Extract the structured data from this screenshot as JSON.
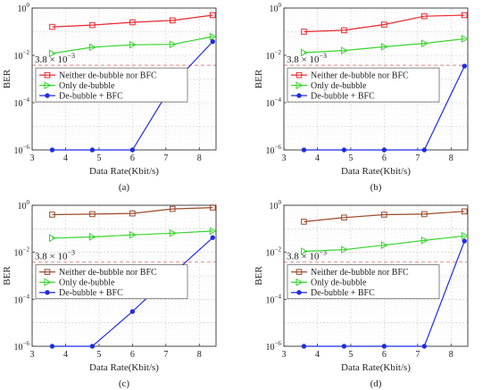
{
  "chart_data": [
    {
      "type": "line",
      "caption": "(a)",
      "xlabel": "Data Rate(Kbit/s)",
      "ylabel": "BER",
      "xlim": [
        3,
        8.5
      ],
      "ylim": [
        1e-06,
        1
      ],
      "yscale": "log",
      "grid": true,
      "legend_position": "middle",
      "xticks": [
        "3",
        "4",
        "5",
        "6",
        "7",
        "8"
      ],
      "yticks": [
        "10^-6",
        "10^-4",
        "10^-2",
        "10^0"
      ],
      "x": [
        3.6,
        4.8,
        6.0,
        7.2,
        8.4
      ],
      "threshold": {
        "value": 0.0038,
        "label_prefix": "3.8 × 10",
        "label_exp": "−3"
      },
      "series": [
        {
          "name": "Neither de-bubble nor BFC",
          "color": "#e8282e",
          "marker": "square",
          "values": [
            0.16,
            0.19,
            0.25,
            0.3,
            0.5
          ]
        },
        {
          "name": "Only de-bubble",
          "color": "#38d42e",
          "marker": "triangle-right",
          "values": [
            0.012,
            0.022,
            0.028,
            0.029,
            0.062
          ]
        },
        {
          "name": "De-bubble + BFC",
          "color": "#1f2de0",
          "marker": "dot",
          "values": [
            1e-06,
            1e-06,
            1e-06,
            0.0006,
            0.038
          ]
        }
      ]
    },
    {
      "type": "line",
      "caption": "(b)",
      "xlabel": "Data Rate(Kbit/s)",
      "ylabel": "BER",
      "xlim": [
        3,
        8.5
      ],
      "ylim": [
        1e-06,
        1
      ],
      "yscale": "log",
      "grid": true,
      "legend_position": "middle",
      "xticks": [
        "3",
        "4",
        "5",
        "6",
        "7",
        "8"
      ],
      "yticks": [
        "10^-6",
        "10^-4",
        "10^-2",
        "10^0"
      ],
      "x": [
        3.6,
        4.8,
        6.0,
        7.2,
        8.4
      ],
      "threshold": {
        "value": 0.0038,
        "label_prefix": "3.8 × 10",
        "label_exp": "−3"
      },
      "series": [
        {
          "name": "Neither de-bubble nor BFC",
          "color": "#e8282e",
          "marker": "square",
          "values": [
            0.1,
            0.115,
            0.2,
            0.45,
            0.5
          ]
        },
        {
          "name": "Only de-bubble",
          "color": "#38d42e",
          "marker": "triangle-right",
          "values": [
            0.013,
            0.016,
            0.023,
            0.032,
            0.05
          ]
        },
        {
          "name": "De-bubble + BFC",
          "color": "#1f2de0",
          "marker": "dot",
          "values": [
            1e-06,
            1e-06,
            1e-06,
            1e-06,
            0.0035
          ]
        }
      ]
    },
    {
      "type": "line",
      "caption": "(c)",
      "xlabel": "Data Rate(Kbit/s)",
      "ylabel": "BER",
      "xlim": [
        3,
        8.5
      ],
      "ylim": [
        1e-06,
        1
      ],
      "yscale": "log",
      "grid": true,
      "legend_position": "middle",
      "xticks": [
        "3",
        "4",
        "5",
        "6",
        "7",
        "8"
      ],
      "yticks": [
        "10^-6",
        "10^-4",
        "10^-2",
        "10^0"
      ],
      "x": [
        3.6,
        4.8,
        6.0,
        7.2,
        8.4
      ],
      "threshold": {
        "value": 0.0038,
        "label_prefix": "3.8 × 10",
        "label_exp": "−3"
      },
      "series": [
        {
          "name": "Neither de-bubble nor BFC",
          "color": "#9c4a2a",
          "marker": "square",
          "values": [
            0.4,
            0.42,
            0.45,
            0.7,
            0.8
          ]
        },
        {
          "name": "Only de-bubble",
          "color": "#38d42e",
          "marker": "triangle-right",
          "values": [
            0.04,
            0.045,
            0.055,
            0.065,
            0.08
          ]
        },
        {
          "name": "De-bubble + BFC",
          "color": "#1f2de0",
          "marker": "dot",
          "values": [
            1e-06,
            1e-06,
            3e-05,
            0.0012,
            0.042
          ]
        }
      ]
    },
    {
      "type": "line",
      "caption": "(d)",
      "xlabel": "Data Rate(Kbit/s)",
      "ylabel": "BER",
      "xlim": [
        3,
        8.5
      ],
      "ylim": [
        1e-06,
        1
      ],
      "yscale": "log",
      "grid": true,
      "legend_position": "middle",
      "xticks": [
        "3",
        "4",
        "5",
        "6",
        "7",
        "8"
      ],
      "yticks": [
        "10^-6",
        "10^-4",
        "10^-2",
        "10^0"
      ],
      "x": [
        3.6,
        4.8,
        6.0,
        7.2,
        8.4
      ],
      "threshold": {
        "value": 0.0038,
        "label_prefix": "3.8 × 10",
        "label_exp": "−3"
      },
      "series": [
        {
          "name": "Neither de-bubble nor BFC",
          "color": "#9c4a2a",
          "marker": "square",
          "values": [
            0.2,
            0.3,
            0.4,
            0.42,
            0.55
          ]
        },
        {
          "name": "Only de-bubble",
          "color": "#38d42e",
          "marker": "triangle-right",
          "values": [
            0.011,
            0.013,
            0.02,
            0.032,
            0.05
          ]
        },
        {
          "name": "De-bubble + BFC",
          "color": "#1f2de0",
          "marker": "dot",
          "values": [
            1e-06,
            1e-06,
            1e-06,
            1e-06,
            0.03
          ]
        }
      ]
    }
  ]
}
